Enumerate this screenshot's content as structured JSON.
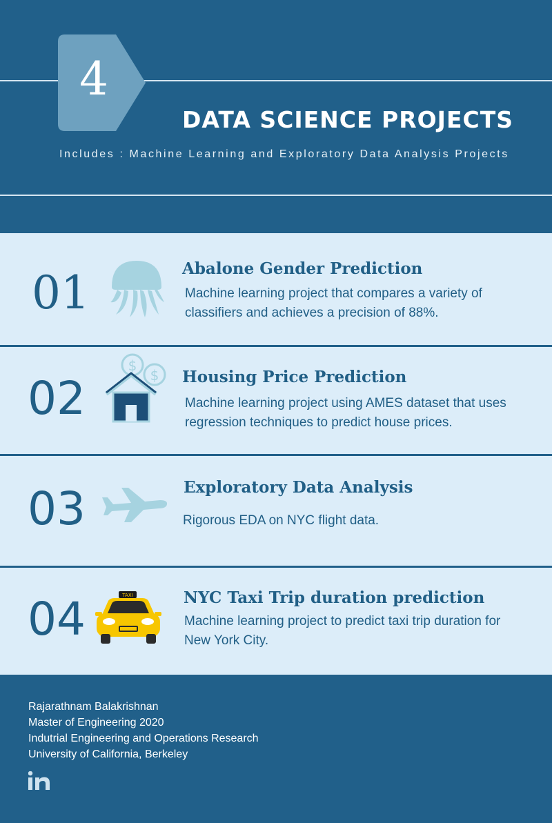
{
  "header": {
    "badge_number": "4",
    "title": "DATA SCIENCE PROJECTS",
    "subtitle": "Includes : Machine Learning and Exploratory Data Analysis Projects"
  },
  "projects": [
    {
      "number": "01",
      "icon": "jellyfish-icon",
      "title": "Abalone Gender Prediction",
      "description": "Machine learning project that compares a variety of classifiers and achieves a precision of 88%."
    },
    {
      "number": "02",
      "icon": "house-dollar-icon",
      "title": "Housing Price Prediction",
      "description": "Machine learning project using AMES dataset that uses regression techniques to predict house prices."
    },
    {
      "number": "03",
      "icon": "airplane-icon",
      "title": "Exploratory Data Analysis",
      "description": "Rigorous EDA on NYC flight data."
    },
    {
      "number": "04",
      "icon": "taxi-icon",
      "title": "NYC Taxi Trip duration prediction",
      "description": "Machine learning project to predict taxi trip duration for New York City."
    }
  ],
  "footer": {
    "name": "Rajarathnam Balakrishnan",
    "degree": "Master of Engineering 2020",
    "department": "Indutrial Engineering and Operations Research",
    "university": "University of California, Berkeley",
    "social_icon": "linkedin-icon"
  },
  "colors": {
    "primary": "#21608a",
    "card": "#dcedf9",
    "badge": "#6ea1bf",
    "icon_light": "#a6d3e0",
    "taxi_yellow": "#f7c600"
  }
}
